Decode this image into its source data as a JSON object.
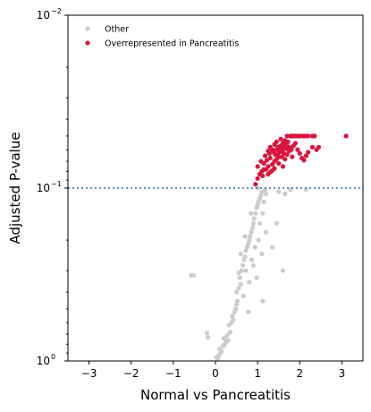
{
  "chart_data": {
    "type": "scatter",
    "xlabel": "Normal vs Pancreatitis",
    "ylabel": "Adjusted P-value",
    "xlim": [
      -3.5,
      3.5
    ],
    "ylim": [
      1,
      0.01
    ],
    "y_scale": "log-reversed",
    "x_ticks": [
      -3,
      -2,
      -1,
      0,
      1,
      2,
      3
    ],
    "y_ticks": [
      {
        "base": "10",
        "exp": "0"
      },
      {
        "base": "10",
        "exp": "−1"
      },
      {
        "base": "10",
        "exp": "−2"
      }
    ],
    "threshold": {
      "y": 0.1,
      "style": "dotted",
      "color": "#1f77b4"
    },
    "legend": {
      "position": "top-left"
    },
    "series": [
      {
        "name": "Other",
        "color": "#cccccc",
        "points": [
          [
            -0.58,
            0.32
          ],
          [
            -0.52,
            0.32
          ],
          [
            -0.2,
            0.69
          ],
          [
            -0.18,
            0.73
          ],
          [
            0.02,
            0.95
          ],
          [
            0.05,
            0.97
          ],
          [
            0.08,
            0.93
          ],
          [
            0.12,
            0.9
          ],
          [
            0.15,
            0.88
          ],
          [
            0.1,
            0.85
          ],
          [
            0.18,
            0.82
          ],
          [
            0.22,
            0.8
          ],
          [
            0.2,
            0.74
          ],
          [
            0.25,
            0.78
          ],
          [
            0.28,
            0.71
          ],
          [
            0.3,
            0.76
          ],
          [
            0.35,
            0.68
          ],
          [
            0.32,
            0.62
          ],
          [
            0.38,
            0.6
          ],
          [
            0.42,
            0.58
          ],
          [
            0.4,
            0.55
          ],
          [
            0.45,
            0.52
          ],
          [
            0.48,
            0.5
          ],
          [
            0.5,
            0.47
          ],
          [
            0.52,
            0.45
          ],
          [
            0.5,
            0.4
          ],
          [
            0.55,
            0.38
          ],
          [
            0.6,
            0.36
          ],
          [
            0.58,
            0.33
          ],
          [
            0.62,
            0.3
          ],
          [
            0.65,
            0.28
          ],
          [
            0.68,
            0.26
          ],
          [
            0.7,
            0.25
          ],
          [
            0.72,
            0.23
          ],
          [
            0.75,
            0.22
          ],
          [
            0.78,
            0.21
          ],
          [
            0.8,
            0.2
          ],
          [
            0.82,
            0.19
          ],
          [
            0.85,
            0.18
          ],
          [
            0.88,
            0.17
          ],
          [
            0.9,
            0.16
          ],
          [
            0.92,
            0.15
          ],
          [
            0.95,
            0.14
          ],
          [
            0.98,
            0.13
          ],
          [
            1.0,
            0.125
          ],
          [
            1.02,
            0.12
          ],
          [
            1.05,
            0.115
          ],
          [
            1.08,
            0.11
          ],
          [
            1.1,
            0.105
          ],
          [
            1.12,
            0.14
          ],
          [
            1.15,
            0.12
          ],
          [
            1.18,
            0.102
          ],
          [
            1.2,
            0.108
          ],
          [
            1.0,
            0.1
          ],
          [
            1.5,
            0.105
          ],
          [
            1.65,
            0.108
          ],
          [
            1.78,
            0.102
          ],
          [
            2.15,
            0.102
          ],
          [
            0.6,
            0.24
          ],
          [
            0.72,
            0.3
          ],
          [
            0.86,
            0.26
          ],
          [
            0.94,
            0.22
          ],
          [
            1.02,
            0.2
          ],
          [
            1.1,
            0.24
          ],
          [
            0.8,
            0.35
          ],
          [
            0.66,
            0.42
          ],
          [
            0.78,
            0.52
          ],
          [
            0.9,
            0.28
          ],
          [
            1.2,
            0.18
          ],
          [
            1.35,
            0.22
          ],
          [
            1.45,
            0.16
          ],
          [
            0.98,
            0.33
          ],
          [
            1.12,
            0.45
          ],
          [
            0.55,
            0.31
          ],
          [
            0.7,
            0.19
          ],
          [
            0.84,
            0.14
          ],
          [
            1.05,
            0.16
          ],
          [
            1.6,
            0.3
          ]
        ]
      },
      {
        "name": "Overrepresented in Pancreatitis",
        "color": "#dc143c",
        "points": [
          [
            0.95,
            0.095
          ],
          [
            1.0,
            0.088
          ],
          [
            1.05,
            0.083
          ],
          [
            1.1,
            0.08
          ],
          [
            1.0,
            0.075
          ],
          [
            1.08,
            0.07
          ],
          [
            1.15,
            0.072
          ],
          [
            1.12,
            0.085
          ],
          [
            1.2,
            0.078
          ],
          [
            1.25,
            0.083
          ],
          [
            1.3,
            0.081
          ],
          [
            1.35,
            0.079
          ],
          [
            1.22,
            0.069
          ],
          [
            1.18,
            0.065
          ],
          [
            1.28,
            0.063
          ],
          [
            1.3,
            0.067
          ],
          [
            1.35,
            0.06
          ],
          [
            1.38,
            0.062
          ],
          [
            1.4,
            0.07
          ],
          [
            1.42,
            0.064
          ],
          [
            1.45,
            0.06
          ],
          [
            1.48,
            0.058
          ],
          [
            1.5,
            0.066
          ],
          [
            1.52,
            0.062
          ],
          [
            1.55,
            0.057
          ],
          [
            1.58,
            0.06
          ],
          [
            1.6,
            0.055
          ],
          [
            1.62,
            0.058
          ],
          [
            1.65,
            0.053
          ],
          [
            1.68,
            0.056
          ],
          [
            1.7,
            0.05
          ],
          [
            1.72,
            0.054
          ],
          [
            1.75,
            0.058
          ],
          [
            1.78,
            0.05
          ],
          [
            1.8,
            0.05
          ],
          [
            1.82,
            0.05
          ],
          [
            1.85,
            0.05
          ],
          [
            1.88,
            0.05
          ],
          [
            1.9,
            0.05
          ],
          [
            1.95,
            0.05
          ],
          [
            2.0,
            0.05
          ],
          [
            2.05,
            0.05
          ],
          [
            2.1,
            0.05
          ],
          [
            2.15,
            0.05
          ],
          [
            2.2,
            0.05
          ],
          [
            2.3,
            0.05
          ],
          [
            2.35,
            0.05
          ],
          [
            1.55,
            0.052
          ],
          [
            1.45,
            0.054
          ],
          [
            1.4,
            0.056
          ],
          [
            1.3,
            0.058
          ],
          [
            1.25,
            0.061
          ],
          [
            1.6,
            0.062
          ],
          [
            1.7,
            0.064
          ],
          [
            1.75,
            0.061
          ],
          [
            1.8,
            0.06
          ],
          [
            1.85,
            0.057
          ],
          [
            1.9,
            0.055
          ],
          [
            1.95,
            0.06
          ],
          [
            2.0,
            0.063
          ],
          [
            2.05,
            0.067
          ],
          [
            2.1,
            0.069
          ],
          [
            2.15,
            0.065
          ],
          [
            2.2,
            0.062
          ],
          [
            2.3,
            0.058
          ],
          [
            2.4,
            0.06
          ],
          [
            2.45,
            0.058
          ],
          [
            1.65,
            0.068
          ],
          [
            1.6,
            0.075
          ],
          [
            1.5,
            0.072
          ],
          [
            1.4,
            0.077
          ],
          [
            1.45,
            0.068
          ],
          [
            1.35,
            0.073
          ],
          [
            1.25,
            0.075
          ],
          [
            1.15,
            0.078
          ],
          [
            3.1,
            0.05
          ],
          [
            1.52,
            0.059
          ],
          [
            1.62,
            0.063
          ],
          [
            1.72,
            0.06
          ],
          [
            1.82,
            0.066
          ],
          [
            1.48,
            0.064
          ],
          [
            1.58,
            0.066
          ],
          [
            1.68,
            0.059
          ]
        ]
      }
    ]
  }
}
